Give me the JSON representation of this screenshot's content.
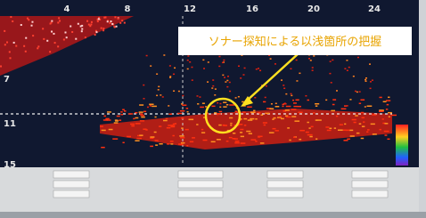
{
  "sonar": {
    "top_labels": [
      "4",
      "8",
      "12",
      "16",
      "20",
      "24"
    ],
    "left_labels": [
      "7",
      "11",
      "15"
    ]
  },
  "annotation": "ソナー探知による以浅箇所の把握"
}
